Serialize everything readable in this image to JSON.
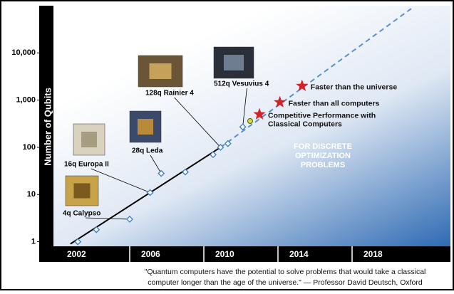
{
  "chart_data": {
    "type": "scatter",
    "y_label": "Number of Qubits",
    "log_y": true,
    "xlim": [
      2002,
      2023.5
    ],
    "ylim": [
      0.8,
      100000
    ],
    "xticks": [
      2002,
      2006,
      2010,
      2014,
      2018
    ],
    "yticks": [
      1,
      10,
      100,
      {
        "value": 1000,
        "label": "1,000"
      },
      {
        "value": 10000,
        "label": "10,000"
      }
    ],
    "series": [
      {
        "marker": "diamond",
        "color": "#3a79c0",
        "x": [
          2003.2,
          2004.2,
          2006.0,
          2007.1,
          2007.7,
          2009.0,
          2010.5,
          2010.9,
          2011.3,
          2012.1
        ],
        "values": [
          1,
          1.8,
          3,
          11,
          28,
          30,
          70,
          100,
          120,
          270
        ]
      },
      {
        "marker": "circle",
        "color": "#d9d93a",
        "x": [
          2012.5
        ],
        "values": [
          360
        ]
      },
      {
        "marker": "star",
        "color": "#d2232a",
        "x": [
          2013.0,
          2014.1,
          2015.3
        ],
        "values": [
          500,
          900,
          2000
        ],
        "labels": [
          "Competitive Performance with\nClassical Computers",
          "Faster than all computers",
          "Faster than the universe"
        ]
      }
    ],
    "trend": {
      "color": "#000000",
      "x": [
        2002.8,
        2010.9
      ],
      "values": [
        0.9,
        100
      ]
    },
    "projection": {
      "color": "#5b8fd0",
      "x": [
        2010.9,
        2021.3
      ],
      "values": [
        100,
        93000
      ]
    },
    "chips": [
      {
        "label": "4q Calypso",
        "x": 2006.0,
        "value": 3
      },
      {
        "label": "16q Europa II",
        "x": 2007.1,
        "value": 11
      },
      {
        "label": "28q Leda",
        "x": 2007.7,
        "value": 28
      },
      {
        "label": "128q Rainier 4",
        "x": 2010.9,
        "value": 100
      },
      {
        "label": "512q Vesuvius 4",
        "x": 2012.1,
        "value": 270
      }
    ],
    "note": "FOR DISCRETE\nOPTIMIZATION\nPROBLEMS",
    "quote": [
      "\"Quantum computers have the potential to solve problems that would take a classical",
      "computer longer than the age of the universe.\"  — Professor David Deutsch, Oxford"
    ]
  }
}
